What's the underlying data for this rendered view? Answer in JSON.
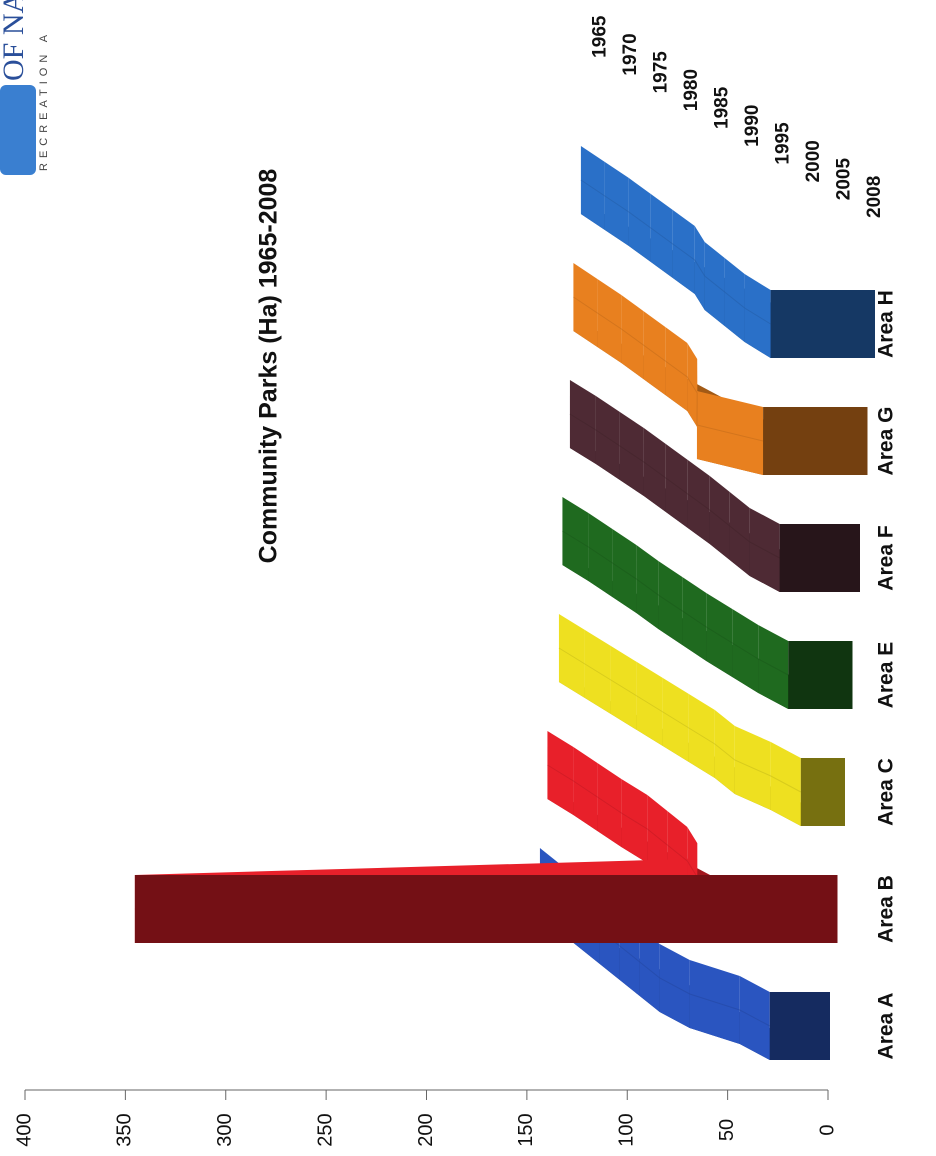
{
  "logo_text": "OF NA",
  "logo_subtext": "RECREATION A",
  "chart_data": {
    "type": "area3d",
    "title": "Community Parks (Ha) 1965-2008",
    "depth_categories": [
      "1965",
      "1970",
      "1975",
      "1980",
      "1985",
      "1990",
      "1995",
      "2000",
      "2005",
      "2008"
    ],
    "series": [
      {
        "name": "Area A",
        "color": "#2a55c0",
        "values": [
          10,
          15,
          20,
          25,
          30,
          35,
          40,
          40,
          30,
          30
        ]
      },
      {
        "name": "Area B",
        "color": "#e8202a",
        "values": [
          10,
          12,
          15,
          18,
          20,
          25,
          30,
          40,
          60,
          350
        ]
      },
      {
        "name": "Area C",
        "color": "#eee020",
        "values": [
          8,
          10,
          12,
          14,
          16,
          18,
          20,
          25,
          22,
          22
        ]
      },
      {
        "name": "Area E",
        "color": "#1f6a1f",
        "values": [
          10,
          12,
          15,
          18,
          22,
          25,
          28,
          30,
          32,
          32
        ]
      },
      {
        "name": "Area F",
        "color": "#4e2a34",
        "values": [
          10,
          12,
          15,
          18,
          22,
          26,
          30,
          35,
          40,
          40
        ]
      },
      {
        "name": "Area G",
        "color": "#e8801f",
        "values": [
          12,
          15,
          18,
          22,
          26,
          30,
          40,
          55,
          70,
          52
        ]
      },
      {
        "name": "Area H",
        "color": "#2a70c8",
        "values": [
          12,
          15,
          18,
          22,
          26,
          30,
          40,
          45,
          50,
          52
        ]
      }
    ],
    "ylim": [
      0,
      400
    ],
    "yticks": [
      0,
      50,
      100,
      150,
      200,
      250,
      300,
      350,
      400
    ]
  }
}
